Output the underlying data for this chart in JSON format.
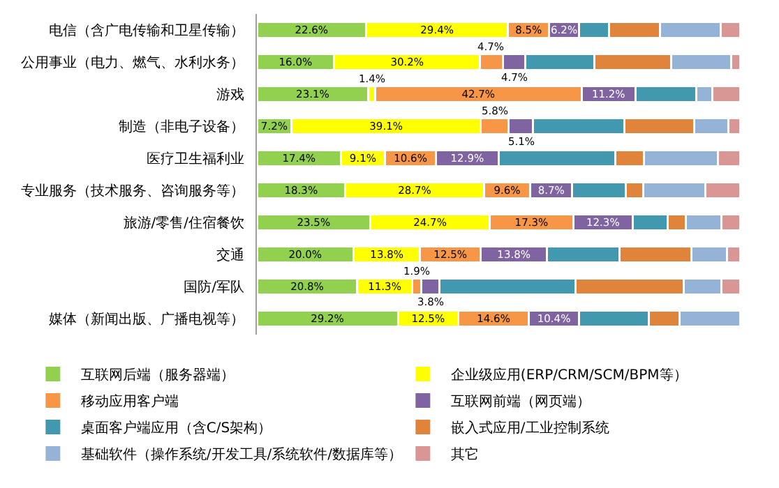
{
  "chart_data": {
    "type": "bar",
    "orientation": "horizontal",
    "stacked": true,
    "tick_labels": "y",
    "legend": "bottom",
    "xlim": [
      0,
      100
    ],
    "categories": [
      "电信（含广电传输和卫星传输）",
      "公用事业（电力、燃气、水利水务）",
      "游戏",
      "制造（非电子设备）",
      "医疗卫生福利业",
      "专业服务（技术服务、咨询服务等）",
      "旅游/零售/住宿餐饮",
      "交通",
      "国防/军队",
      "媒体（新闻出版、广播电视等）"
    ],
    "series": [
      {
        "name": "互联网后端（服务器端）",
        "color": "#92d050",
        "values": [
          22.6,
          16.0,
          23.1,
          7.2,
          17.4,
          18.3,
          23.5,
          20.0,
          20.8,
          29.2
        ],
        "value_labels": [
          "22.6%",
          "16.0%",
          "23.1%",
          "7.2%",
          "17.4%",
          "18.3%",
          "23.5%",
          "20.0%",
          "20.8%",
          "29.2%"
        ]
      },
      {
        "name": "企业级应用(ERP/CRM/SCM/BPM等）",
        "color": "#ffff00",
        "values": [
          29.4,
          30.2,
          1.4,
          39.1,
          9.1,
          28.7,
          24.7,
          13.8,
          11.3,
          12.5
        ],
        "value_labels": [
          "29.4%",
          "30.2%",
          "1.4%",
          "39.1%",
          "9.1%",
          "28.7%",
          "24.7%",
          "13.8%",
          "11.3%",
          "12.5%"
        ]
      },
      {
        "name": "移动应用客户端",
        "color": "#f79646",
        "values": [
          8.5,
          4.7,
          42.7,
          5.8,
          10.6,
          9.6,
          17.3,
          12.5,
          1.9,
          14.6
        ],
        "value_labels": [
          "8.5%",
          "4.7%",
          "42.7%",
          "5.8%",
          "10.6%",
          "9.6%",
          "17.3%",
          "12.5%",
          "1.9%",
          "14.6%"
        ]
      },
      {
        "name": "互联网前端（网页端）",
        "color": "#8064a2",
        "values": [
          6.2,
          4.7,
          11.2,
          5.1,
          12.9,
          8.7,
          12.3,
          13.8,
          3.8,
          10.4
        ],
        "value_labels": [
          "6.2%",
          "4.7%",
          "11.2%",
          "5.1%",
          "12.9%",
          "8.7%",
          "12.3%",
          "13.8%",
          "3.8%",
          "10.4%"
        ]
      },
      {
        "name": "桌面客户端应用（含C/S架构）",
        "color": "#4198af",
        "values": [
          6.2,
          14.3,
          12.5,
          18.9,
          24.2,
          11.1,
          7.3,
          14.9,
          28.1,
          14.5
        ]
      },
      {
        "name": "嵌入式应用/工业控制系统",
        "color": "#e0843c",
        "values": [
          10.6,
          15.8,
          null,
          14.5,
          6.0,
          3.6,
          3.7,
          14.9,
          22.5,
          6.3
        ]
      },
      {
        "name": "基础软件（操作系统/开发工具/系统软件/数据库等）",
        "color": "#95b3d7",
        "values": [
          12.5,
          12.5,
          3.4,
          7.0,
          15.2,
          12.9,
          7.4,
          7.4,
          7.8,
          12.5
        ]
      },
      {
        "name": "其它",
        "color": "#d99694",
        "values": [
          4.0,
          1.8,
          5.7,
          2.4,
          4.6,
          7.1,
          3.8,
          2.7,
          3.8,
          null
        ]
      }
    ]
  }
}
